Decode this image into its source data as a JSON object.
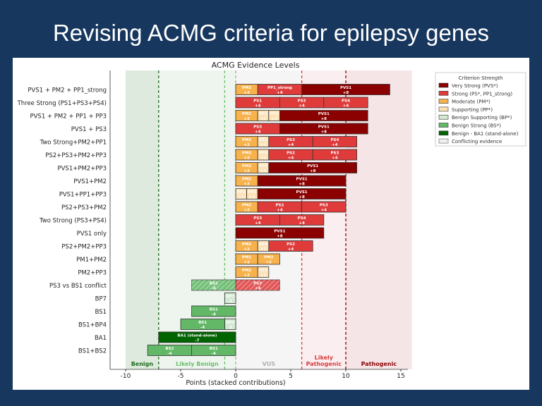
{
  "slide": {
    "title": "Revising ACMG criteria for epilepsy genes"
  },
  "chart_data": {
    "type": "bar",
    "orientation": "horizontal-stacked",
    "title": "ACMG Evidence Levels",
    "xlabel": "Points (stacked contributions)",
    "xlim": [
      -11.5,
      15.6
    ],
    "xticks": [
      -10,
      -5,
      0,
      5,
      10,
      15
    ],
    "colors": {
      "very_strong": "#8b0000",
      "strong": "#e03b3b",
      "moderate": "#f8b24c",
      "supporting": "#fde2b8",
      "benign_supporting": "#d3e9d3",
      "benign_strong": "#62b866",
      "ba1": "#006400"
    },
    "zones": [
      {
        "label": "Benign",
        "from": -10,
        "to": -7,
        "color": "#dfeadf",
        "text_color": "#1e6b1e"
      },
      {
        "label": "Likely Benign",
        "from": -7,
        "to": 0,
        "color": "#eef5ee",
        "text_color": "#6cbf6c"
      },
      {
        "label": "VUS",
        "from": 0,
        "to": 6,
        "color": "#f5f5f5",
        "text_color": "#b0b0b0"
      },
      {
        "label": "Likely Pathogenic",
        "from": 6,
        "to": 10,
        "color": "#fbeef0",
        "text_color": "#d93c3c"
      },
      {
        "label": "Pathogenic",
        "from": 10,
        "to": 16,
        "color": "#f5e5e6",
        "text_color": "#8b0000"
      }
    ],
    "thresholds": [
      {
        "x": -7,
        "color": "#1e6b1e"
      },
      {
        "x": -1,
        "color": "#6cbf6c"
      },
      {
        "x": 0,
        "color": "#aaaaaa"
      },
      {
        "x": 6,
        "color": "#d93c3c"
      },
      {
        "x": 10,
        "color": "#8b0000"
      }
    ],
    "legend": {
      "title": "Criterion Strength",
      "placement": "upper-right-outside",
      "entries": [
        {
          "label": "Very Strong (PVS*)",
          "level": "very_strong"
        },
        {
          "label": "Strong (PS*, PP1_strong)",
          "level": "strong"
        },
        {
          "label": "Moderate (PM*)",
          "level": "moderate"
        },
        {
          "label": "Supporting (PP*)",
          "level": "supporting"
        },
        {
          "label": "Benign Supporting (BP*)",
          "level": "benign_supporting"
        },
        {
          "label": "Benign Strong (BS*)",
          "level": "benign_strong"
        },
        {
          "label": "Benign - BA1 (stand-alone)",
          "level": "ba1"
        },
        {
          "label": "Conflicting evidence",
          "level": "conflicting"
        }
      ]
    },
    "rows": [
      {
        "label": "PVS1 + PM2 + PP1_strong",
        "segments": [
          {
            "code": "PM2",
            "value": "+2",
            "points": 2,
            "level": "moderate"
          },
          {
            "code": "PP1_strong",
            "value": "+4",
            "points": 4,
            "level": "strong"
          },
          {
            "code": "PVS1",
            "value": "+8",
            "points": 8,
            "level": "very_strong"
          }
        ]
      },
      {
        "label": "Three Strong (PS1+PS3+PS4)",
        "segments": [
          {
            "code": "PS1",
            "value": "+4",
            "points": 4,
            "level": "strong"
          },
          {
            "code": "PS3",
            "value": "+4",
            "points": 4,
            "level": "strong"
          },
          {
            "code": "PS4",
            "value": "+4",
            "points": 4,
            "level": "strong"
          }
        ]
      },
      {
        "label": "PVS1 + PM2 + PP1 + PP3",
        "segments": [
          {
            "code": "PM2",
            "value": "+2",
            "points": 2,
            "level": "moderate"
          },
          {
            "code": "PP1",
            "value": "+1",
            "points": 1,
            "level": "supporting"
          },
          {
            "code": "PP3",
            "value": "+1",
            "points": 1,
            "level": "supporting"
          },
          {
            "code": "PVS1",
            "value": "+8",
            "points": 8,
            "level": "very_strong"
          }
        ]
      },
      {
        "label": "PVS1 + PS3",
        "segments": [
          {
            "code": "PS3",
            "value": "+4",
            "points": 4,
            "level": "strong"
          },
          {
            "code": "PVS1",
            "value": "+8",
            "points": 8,
            "level": "very_strong"
          }
        ]
      },
      {
        "label": "Two Strong+PM2+PP1",
        "segments": [
          {
            "code": "PM2",
            "value": "+2",
            "points": 2,
            "level": "moderate"
          },
          {
            "code": "PP1",
            "value": "+1",
            "points": 1,
            "level": "supporting"
          },
          {
            "code": "PS3",
            "value": "+4",
            "points": 4,
            "level": "strong"
          },
          {
            "code": "PS4",
            "value": "+4",
            "points": 4,
            "level": "strong"
          }
        ]
      },
      {
        "label": "PS2+PS3+PM2+PP3",
        "segments": [
          {
            "code": "PM2",
            "value": "+2",
            "points": 2,
            "level": "moderate"
          },
          {
            "code": "PP3",
            "value": "+1",
            "points": 1,
            "level": "supporting"
          },
          {
            "code": "PS2",
            "value": "+4",
            "points": 4,
            "level": "strong"
          },
          {
            "code": "PS3",
            "value": "+4",
            "points": 4,
            "level": "strong"
          }
        ]
      },
      {
        "label": "PVS1+PM2+PP3",
        "segments": [
          {
            "code": "PM2",
            "value": "+2",
            "points": 2,
            "level": "moderate"
          },
          {
            "code": "PP3",
            "value": "+1",
            "points": 1,
            "level": "supporting"
          },
          {
            "code": "PVS1",
            "value": "+8",
            "points": 8,
            "level": "very_strong"
          }
        ]
      },
      {
        "label": "PVS1+PM2",
        "segments": [
          {
            "code": "PM2",
            "value": "+2",
            "points": 2,
            "level": "moderate"
          },
          {
            "code": "PVS1",
            "value": "+8",
            "points": 8,
            "level": "very_strong"
          }
        ]
      },
      {
        "label": "PVS1+PP1+PP3",
        "segments": [
          {
            "code": "PP1",
            "value": "+1",
            "points": 1,
            "level": "supporting"
          },
          {
            "code": "PP3",
            "value": "+1",
            "points": 1,
            "level": "supporting"
          },
          {
            "code": "PVS1",
            "value": "+8",
            "points": 8,
            "level": "very_strong"
          }
        ]
      },
      {
        "label": "PS2+PS3+PM2",
        "segments": [
          {
            "code": "PM2",
            "value": "+2",
            "points": 2,
            "level": "moderate"
          },
          {
            "code": "PS2",
            "value": "+4",
            "points": 4,
            "level": "strong"
          },
          {
            "code": "PS3",
            "value": "+4",
            "points": 4,
            "level": "strong"
          }
        ]
      },
      {
        "label": "Two Strong (PS3+PS4)",
        "segments": [
          {
            "code": "PS3",
            "value": "+4",
            "points": 4,
            "level": "strong"
          },
          {
            "code": "PS4",
            "value": "+4",
            "points": 4,
            "level": "strong"
          }
        ]
      },
      {
        "label": "PVS1 only",
        "segments": [
          {
            "code": "PVS1",
            "value": "+8",
            "points": 8,
            "level": "very_strong"
          }
        ]
      },
      {
        "label": "PS2+PM2+PP3",
        "segments": [
          {
            "code": "PM2",
            "value": "+2",
            "points": 2,
            "level": "moderate"
          },
          {
            "code": "PP3",
            "value": "+1",
            "points": 1,
            "level": "supporting"
          },
          {
            "code": "PS2",
            "value": "+4",
            "points": 4,
            "level": "strong"
          }
        ]
      },
      {
        "label": "PM1+PM2",
        "segments": [
          {
            "code": "PM1",
            "value": "+2",
            "points": 2,
            "level": "moderate"
          },
          {
            "code": "PM2",
            "value": "+2",
            "points": 2,
            "level": "moderate"
          }
        ]
      },
      {
        "label": "PM2+PP3",
        "segments": [
          {
            "code": "PM2",
            "value": "+2",
            "points": 2,
            "level": "moderate"
          },
          {
            "code": "PP3",
            "value": "+1",
            "points": 1,
            "level": "supporting"
          }
        ]
      },
      {
        "label": "PS3 vs BS1 conflict",
        "segments": [
          {
            "code": "PS3",
            "value": "+4",
            "points": 4,
            "level": "strong",
            "conflicting": true
          },
          {
            "code": "BS1",
            "value": "-4",
            "points": -4,
            "level": "benign_strong",
            "conflicting": true
          }
        ]
      },
      {
        "label": "BP7",
        "segments": [
          {
            "code": "BP7",
            "value": "-1",
            "points": -1,
            "level": "benign_supporting"
          }
        ]
      },
      {
        "label": "BS1",
        "segments": [
          {
            "code": "BS1",
            "value": "-4",
            "points": -4,
            "level": "benign_strong"
          }
        ]
      },
      {
        "label": "BS1+BP4",
        "segments": [
          {
            "code": "BP4",
            "value": "-1",
            "points": -1,
            "level": "benign_supporting"
          },
          {
            "code": "BS1",
            "value": "-4",
            "points": -4,
            "level": "benign_strong"
          }
        ]
      },
      {
        "label": "BA1",
        "segments": [
          {
            "code": "BA1 (stand-alone)",
            "value": "-7",
            "points": -7,
            "level": "ba1"
          }
        ]
      },
      {
        "label": "BS1+BS2",
        "segments": [
          {
            "code": "BS1",
            "value": "-4",
            "points": -4,
            "level": "benign_strong"
          },
          {
            "code": "BS2",
            "value": "-4",
            "points": -4,
            "level": "benign_strong"
          }
        ]
      }
    ]
  }
}
